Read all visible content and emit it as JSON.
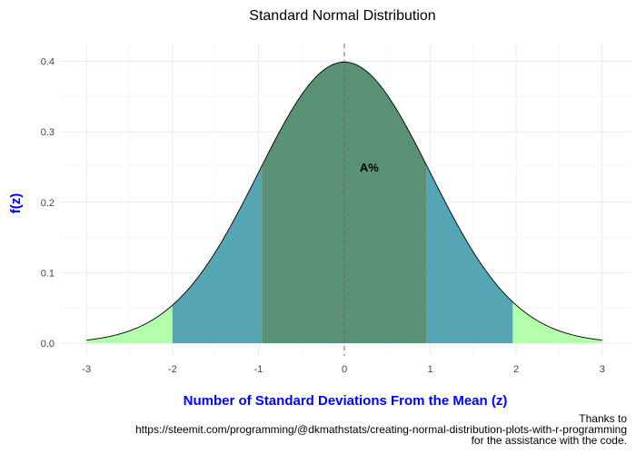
{
  "chart_data": {
    "type": "area",
    "title": "Standard Normal Distribution",
    "xlabel": "Number of Standard Deviations From the Mean (z)",
    "ylabel": "f(z)",
    "xlim": [
      -3,
      3
    ],
    "ylim": [
      0,
      0.4
    ],
    "x_ticks": [
      -3,
      -2,
      -1,
      0,
      1,
      2,
      3
    ],
    "y_ticks": [
      0.0,
      0.1,
      0.2,
      0.3,
      0.4
    ],
    "x_tick_labels": [
      "-3",
      "-2",
      "-1",
      "0",
      "1",
      "2",
      "3"
    ],
    "y_tick_labels": [
      "0.0",
      "0.1",
      "0.2",
      "0.3",
      "0.4"
    ],
    "grid": true,
    "mean_line": {
      "x": 0,
      "style": "dashed"
    },
    "regions": [
      {
        "from": -3,
        "to": -2,
        "color": "#b3ffab"
      },
      {
        "from": -2,
        "to": -0.96,
        "color": "#56a5b4"
      },
      {
        "from": -0.96,
        "to": 0.96,
        "color": "#5a9175"
      },
      {
        "from": 0.96,
        "to": 1.96,
        "color": "#56a5b4"
      },
      {
        "from": 1.96,
        "to": 3,
        "color": "#b3ffab"
      }
    ],
    "annotation": {
      "text": "A%",
      "x": 0.5,
      "y": 0.25
    }
  },
  "caption": {
    "lines": [
      "Thanks to",
      "https://steemit.com/programming/@dkmathstats/creating-normal-distribution-plots-with-r-programming",
      "for the assistance with the code."
    ]
  }
}
